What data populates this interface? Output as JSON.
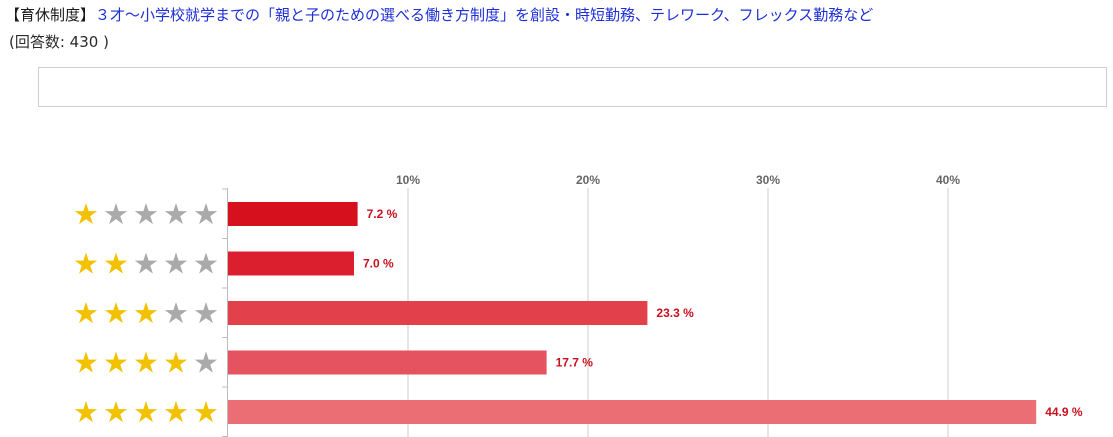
{
  "header": {
    "tag": "【育休制度】",
    "topic": "３才〜小学校就学までの「親と子のための選べる働き方制度」を創設・時短勤務、テレワーク、フレックス勤務など",
    "response_count": "(回答数: 430 )"
  },
  "comment_box": {
    "value": ""
  },
  "colors": {
    "star_filled": "#f2c200",
    "star_empty": "#aaaaaa",
    "gridline": "#cccccc",
    "value_label": "#c8101e"
  },
  "chart_data": {
    "type": "bar",
    "orientation": "horizontal",
    "categories": [
      "1 star",
      "2 stars",
      "3 stars",
      "4 stars",
      "5 stars"
    ],
    "category_star_counts": [
      1,
      2,
      3,
      4,
      5
    ],
    "star_total": 5,
    "values": [
      7.2,
      7.0,
      23.3,
      17.7,
      44.9
    ],
    "value_labels": [
      "7.2 %",
      "7.0 %",
      "23.3 %",
      "17.7 %",
      "44.9 %"
    ],
    "bar_colors": [
      "#d7101e",
      "#db1f2e",
      "#e2404b",
      "#e55260",
      "#ea6e73"
    ],
    "xlim": [
      0,
      46
    ],
    "xticks": [
      10,
      20,
      30,
      40
    ],
    "xtick_labels": [
      "10%",
      "20%",
      "30%",
      "40%"
    ],
    "grid": true,
    "title": "",
    "xlabel": "",
    "ylabel": ""
  }
}
